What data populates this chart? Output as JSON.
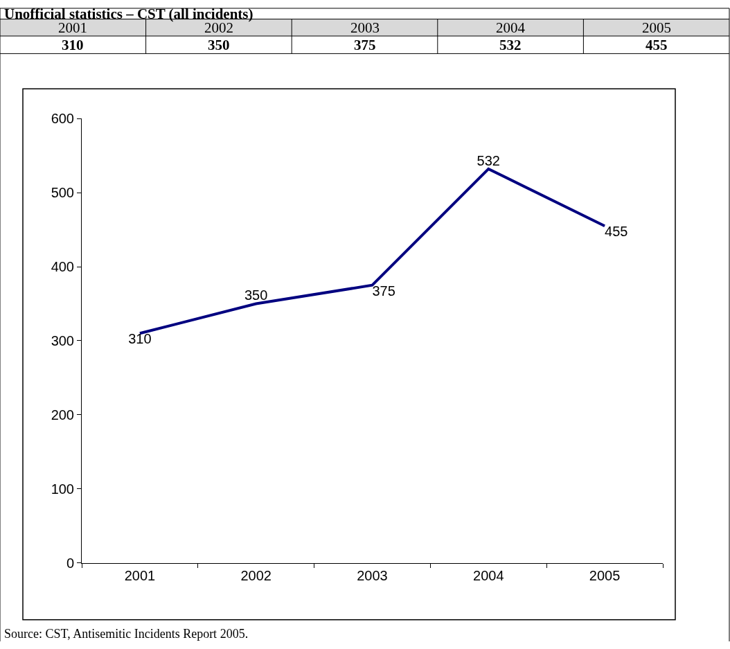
{
  "chart_data": {
    "type": "line",
    "title": "Unofficial statistics – CST (all incidents)",
    "categories": [
      "2001",
      "2002",
      "2003",
      "2004",
      "2005"
    ],
    "series": [
      {
        "color": "#000080",
        "values": [
          310,
          350,
          375,
          532,
          455
        ]
      }
    ],
    "ylim": [
      0,
      600
    ],
    "yticks": [
      0,
      100,
      200,
      300,
      400,
      500,
      600
    ],
    "data_labels": true,
    "grid": false,
    "legend": false,
    "marker": "none",
    "line_style": "solid",
    "annotations": [
      "310",
      "350",
      "375",
      "532",
      "455",
      "Source: CST, Antisemitic Incidents Report 2005."
    ]
  }
}
